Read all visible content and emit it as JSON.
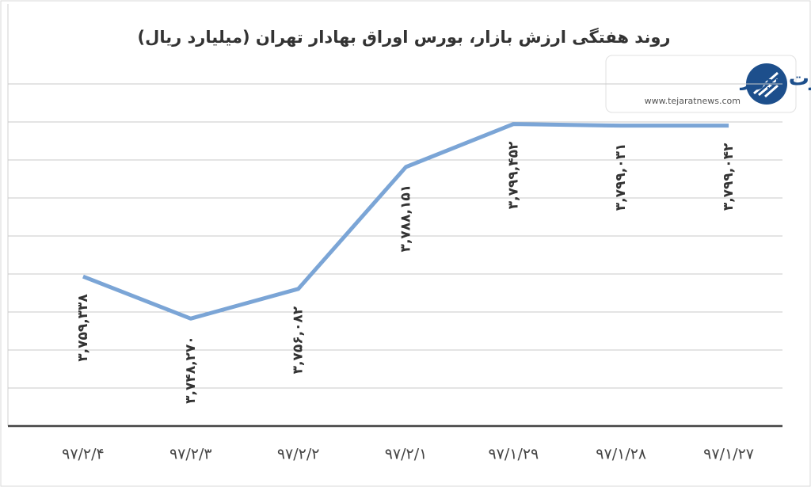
{
  "chart_data": {
    "type": "line",
    "title": "روند هفتگی ارزش بازار، بورس اوراق بهادار تهران (میلیارد ریال)",
    "logo": {
      "name": "تجارت نیوز",
      "url": "www.tejaratnews.com"
    },
    "categories": [
      "۹۷/۲/۴",
      "۹۷/۲/۳",
      "۹۷/۲/۲",
      "۹۷/۲/۱",
      "۹۷/۱/۲۹",
      "۹۷/۱/۲۸",
      "۹۷/۱/۲۷"
    ],
    "series": [
      {
        "color": "#7ba5d6",
        "values": [
          3759338,
          3748270,
          3756082,
          3788151,
          3799452,
          3799031,
          3799042
        ],
        "value_labels": [
          "۳,۷۵۹,۳۳۸",
          "۳,۷۴۸,۲۷۰",
          "۳,۷۵۶,۰۸۲",
          "۳,۷۸۸,۱۵۱",
          "۳,۷۹۹,۴۵۲",
          "۳,۷۹۹,۰۳۱",
          "۳,۷۹۹,۰۴۲"
        ]
      }
    ],
    "ylim": [
      3720000,
      3810000
    ],
    "yticks": [
      3720000,
      3730000,
      3740000,
      3750000,
      3760000,
      3770000,
      3780000,
      3790000,
      3800000,
      3810000
    ],
    "grid": true
  }
}
